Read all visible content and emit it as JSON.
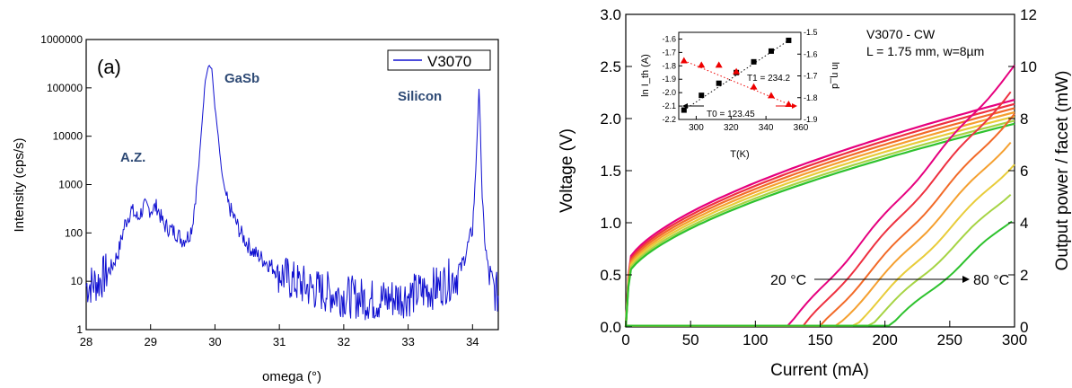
{
  "chart_data": [
    {
      "type": "line",
      "panel_label": "(a)",
      "xlabel": "omega (°)",
      "ylabel": "Intensity (cps/s)",
      "xlim": [
        28,
        34.4
      ],
      "ylim": [
        1,
        1000000
      ],
      "yscale": "log",
      "xticks": [
        "28",
        "29",
        "30",
        "31",
        "32",
        "33",
        "34"
      ],
      "yticks": [
        "1",
        "10",
        "100",
        "1000",
        "10000",
        "100000",
        "1000000"
      ],
      "legend": {
        "position": "top-right",
        "entries": [
          "V3070"
        ]
      },
      "series": [
        {
          "name": "V3070",
          "color": "#1010d0",
          "x": [
            28.0,
            28.2,
            28.4,
            28.5,
            28.6,
            28.7,
            28.8,
            28.9,
            29.0,
            29.1,
            29.2,
            29.3,
            29.4,
            29.5,
            29.55,
            29.6,
            29.65,
            29.7,
            29.75,
            29.8,
            29.85,
            29.9,
            29.95,
            30.0,
            30.05,
            30.1,
            30.15,
            30.2,
            30.3,
            30.4,
            30.5,
            30.6,
            30.8,
            31.0,
            31.2,
            31.5,
            32.0,
            32.5,
            33.0,
            33.5,
            33.8,
            33.9,
            34.0,
            34.05,
            34.1,
            34.12,
            34.15,
            34.2,
            34.25,
            34.3,
            34.4
          ],
          "y": [
            8,
            10,
            20,
            40,
            150,
            300,
            200,
            350,
            300,
            350,
            150,
            120,
            100,
            70,
            80,
            90,
            150,
            600,
            2500,
            20000,
            150000,
            300000,
            250000,
            40000,
            10000,
            2000,
            800,
            400,
            200,
            100,
            60,
            40,
            25,
            15,
            10,
            7,
            5,
            4,
            5,
            8,
            15,
            40,
            120,
            2000,
            90000,
            20000,
            400,
            50,
            15,
            8,
            5
          ]
        }
      ],
      "annotations": [
        "A.Z.",
        "GaSb",
        "Silicon"
      ]
    },
    {
      "type": "line",
      "title_lines": [
        "V3070 - CW",
        "L = 1.75 mm, w=8µm"
      ],
      "xlabel": "Current (mA)",
      "ylabel": "Voltage (V)",
      "y2label": "Output power / facet (mW)",
      "xlim": [
        0,
        300
      ],
      "ylim": [
        0,
        3.0
      ],
      "y2lim": [
        0,
        12
      ],
      "xticks": [
        "0",
        "50",
        "100",
        "150",
        "200",
        "250",
        "300"
      ],
      "yticks": [
        "0.0",
        "0.5",
        "1.0",
        "1.5",
        "2.0",
        "2.5",
        "3.0"
      ],
      "y2ticks": [
        "0",
        "2",
        "4",
        "6",
        "8",
        "10",
        "12"
      ],
      "temperature_arrow": {
        "from": "20 °C",
        "to": "80 °C"
      },
      "temperatures_C": [
        20,
        30,
        40,
        50,
        60,
        70,
        80
      ],
      "colors": [
        "#e6007e",
        "#ee3040",
        "#f26a28",
        "#f5a030",
        "#e8cc3a",
        "#a6d444",
        "#2ec22e"
      ],
      "voltage_at_300mA": [
        2.18,
        2.14,
        2.1,
        2.06,
        2.02,
        1.98,
        1.95
      ],
      "threshold_current_mA": [
        125,
        137,
        150,
        162,
        175,
        187,
        203
      ],
      "power_at_300mA_mW": [
        10.0,
        9.2,
        8.2,
        7.3,
        6.3,
        5.3,
        4.2
      ],
      "inset": {
        "xlabel": "T(K)",
        "ylabel": "ln I_th (A)",
        "y2label": "ln η_d",
        "xlim": [
          290,
          360
        ],
        "ylim": [
          -2.2,
          -1.55
        ],
        "y2lim": [
          -1.9,
          -1.5
        ],
        "xticks": [
          "300",
          "320",
          "340",
          "360"
        ],
        "yticks": [
          "-2.2",
          "-2.1",
          "-2.0",
          "-1.9",
          "-1.8",
          "-1.7",
          "-1.6"
        ],
        "y2ticks": [
          "-1.9",
          "-1.8",
          "-1.7",
          "-1.6",
          "-1.5"
        ],
        "T0_label": "T0 = 123.45",
        "T1_label": "T1 = 234.2",
        "ln_Ith": {
          "x": [
            293,
            303,
            313,
            323,
            333,
            343,
            353
          ],
          "y": [
            -2.13,
            -2.02,
            -1.93,
            -1.85,
            -1.77,
            -1.69,
            -1.61
          ]
        },
        "ln_eta": {
          "x": [
            293,
            303,
            313,
            323,
            333,
            343,
            353
          ],
          "y": [
            -1.63,
            -1.65,
            -1.65,
            -1.68,
            -1.75,
            -1.79,
            -1.83
          ]
        }
      }
    }
  ]
}
